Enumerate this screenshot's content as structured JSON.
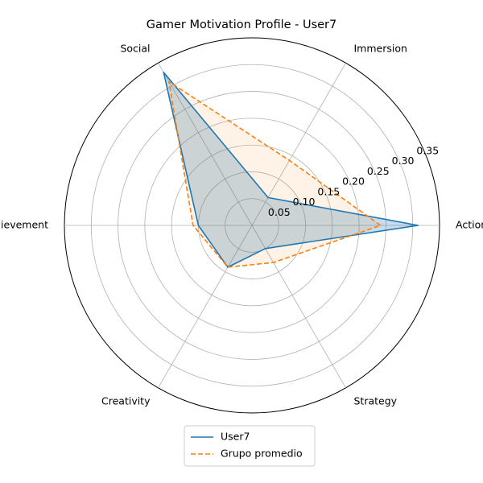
{
  "chart_data": {
    "type": "radar",
    "title": "Gamer Motivation Profile - User7",
    "categories": [
      "Action",
      "Immersion",
      "Social",
      "Achievement",
      "Creativity",
      "Strategy"
    ],
    "rlim": [
      0,
      0.35
    ],
    "rticks": [
      0.05,
      0.1,
      0.15,
      0.2,
      0.25,
      0.3,
      0.35
    ],
    "rtick_labels": [
      "0.05",
      "0.10",
      "0.15",
      "0.20",
      "0.25",
      "0.30",
      "0.35"
    ],
    "grid": true,
    "legend_position": "bottom-center",
    "series": [
      {
        "name": "User7",
        "values": [
          0.31,
          0.06,
          0.33,
          0.1,
          0.09,
          0.05
        ],
        "color": "#1f77b4",
        "line_style": "solid",
        "fill_opacity": 0.25
      },
      {
        "name": "Grupo promedio",
        "values": [
          0.24,
          0.14,
          0.31,
          0.11,
          0.09,
          0.08
        ],
        "color": "#ff7f0e",
        "line_style": "dashed",
        "fill_opacity": 0.1
      }
    ]
  }
}
